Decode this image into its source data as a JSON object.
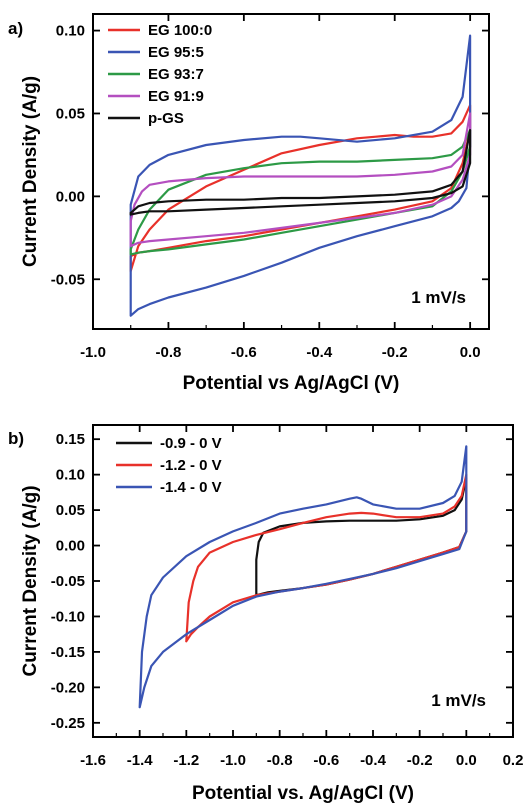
{
  "chart_data": [
    {
      "type": "line",
      "panel_label": "a)",
      "xlabel": "Potential vs Ag/AgCl (V)",
      "ylabel": "Current Density (A/g)",
      "xlim": [
        -1.0,
        0.05
      ],
      "ylim": [
        -0.08,
        0.11
      ],
      "xticks": [
        -1.0,
        -0.8,
        -0.6,
        -0.4,
        -0.2,
        0.0
      ],
      "xtick_labels": [
        "-1.0",
        "-0.8",
        "-0.6",
        "-0.4",
        "-0.2",
        "0.0"
      ],
      "yticks": [
        -0.05,
        0.0,
        0.05,
        0.1
      ],
      "ytick_labels": [
        "-0.05",
        "0.00",
        "0.05",
        "0.10"
      ],
      "annotation": "1 mV/s",
      "legend_position": "top-left",
      "series": [
        {
          "name": "EG 100:0",
          "color": "#e8312a",
          "x": [
            -0.9,
            -0.88,
            -0.85,
            -0.8,
            -0.7,
            -0.6,
            -0.5,
            -0.4,
            -0.3,
            -0.25,
            -0.2,
            -0.15,
            -0.1,
            -0.05,
            -0.02,
            0.0,
            0.0,
            -0.02,
            -0.05,
            -0.1,
            -0.2,
            -0.3,
            -0.4,
            -0.5,
            -0.6,
            -0.7,
            -0.8,
            -0.85,
            -0.88,
            -0.9,
            -0.9
          ],
          "y": [
            -0.045,
            -0.03,
            -0.02,
            -0.008,
            0.006,
            0.016,
            0.026,
            0.031,
            0.035,
            0.036,
            0.037,
            0.036,
            0.036,
            0.038,
            0.045,
            0.055,
            0.04,
            0.02,
            0.005,
            -0.003,
            -0.008,
            -0.012,
            -0.016,
            -0.02,
            -0.024,
            -0.027,
            -0.031,
            -0.033,
            -0.034,
            -0.036,
            -0.045
          ]
        },
        {
          "name": "EG 95:5",
          "color": "#3a55b4",
          "x": [
            -0.9,
            -0.88,
            -0.85,
            -0.8,
            -0.7,
            -0.6,
            -0.5,
            -0.45,
            -0.4,
            -0.3,
            -0.2,
            -0.1,
            -0.05,
            -0.02,
            0.0,
            0.0,
            -0.01,
            -0.03,
            -0.05,
            -0.1,
            -0.2,
            -0.3,
            -0.4,
            -0.5,
            -0.6,
            -0.7,
            -0.8,
            -0.85,
            -0.88,
            -0.9,
            -0.9
          ],
          "y": [
            -0.005,
            0.012,
            0.019,
            0.025,
            0.031,
            0.034,
            0.036,
            0.036,
            0.035,
            0.033,
            0.035,
            0.039,
            0.046,
            0.06,
            0.097,
            0.03,
            0.005,
            -0.003,
            -0.007,
            -0.012,
            -0.018,
            -0.024,
            -0.031,
            -0.04,
            -0.048,
            -0.055,
            -0.061,
            -0.065,
            -0.068,
            -0.072,
            -0.005
          ]
        },
        {
          "name": "EG 93:7",
          "color": "#2d9a46",
          "x": [
            -0.9,
            -0.88,
            -0.85,
            -0.8,
            -0.7,
            -0.6,
            -0.5,
            -0.4,
            -0.3,
            -0.2,
            -0.1,
            -0.05,
            -0.02,
            0.0,
            0.0,
            -0.02,
            -0.05,
            -0.1,
            -0.2,
            -0.3,
            -0.4,
            -0.5,
            -0.6,
            -0.7,
            -0.8,
            -0.85,
            -0.88,
            -0.9,
            -0.9
          ],
          "y": [
            -0.032,
            -0.02,
            -0.008,
            0.004,
            0.013,
            0.017,
            0.02,
            0.021,
            0.021,
            0.022,
            0.023,
            0.025,
            0.03,
            0.04,
            0.03,
            0.015,
            0.003,
            -0.006,
            -0.01,
            -0.014,
            -0.018,
            -0.022,
            -0.026,
            -0.029,
            -0.032,
            -0.033,
            -0.034,
            -0.035,
            -0.032
          ]
        },
        {
          "name": "EG 91:9",
          "color": "#b44fc0",
          "x": [
            -0.9,
            -0.89,
            -0.87,
            -0.85,
            -0.8,
            -0.7,
            -0.6,
            -0.5,
            -0.4,
            -0.3,
            -0.2,
            -0.1,
            -0.05,
            -0.02,
            0.0,
            0.0,
            -0.02,
            -0.05,
            -0.1,
            -0.2,
            -0.3,
            -0.4,
            -0.5,
            -0.6,
            -0.7,
            -0.8,
            -0.85,
            -0.88,
            -0.9,
            -0.9
          ],
          "y": [
            -0.015,
            -0.005,
            0.003,
            0.007,
            0.009,
            0.011,
            0.012,
            0.012,
            0.012,
            0.012,
            0.013,
            0.015,
            0.018,
            0.025,
            0.05,
            0.025,
            0.01,
            0.0,
            -0.005,
            -0.01,
            -0.013,
            -0.016,
            -0.019,
            -0.022,
            -0.024,
            -0.026,
            -0.027,
            -0.028,
            -0.03,
            -0.015
          ]
        },
        {
          "name": "p-GS",
          "color": "#111111",
          "x": [
            -0.9,
            -0.88,
            -0.85,
            -0.8,
            -0.7,
            -0.6,
            -0.5,
            -0.4,
            -0.3,
            -0.2,
            -0.1,
            -0.05,
            -0.02,
            0.0,
            0.0,
            -0.02,
            -0.05,
            -0.1,
            -0.2,
            -0.3,
            -0.4,
            -0.5,
            -0.6,
            -0.7,
            -0.8,
            -0.85,
            -0.88,
            -0.9,
            -0.9
          ],
          "y": [
            -0.01,
            -0.006,
            -0.004,
            -0.003,
            -0.002,
            -0.002,
            -0.001,
            -0.001,
            0.0,
            0.001,
            0.003,
            0.007,
            0.015,
            0.04,
            0.02,
            0.006,
            0.002,
            -0.001,
            -0.003,
            -0.004,
            -0.005,
            -0.006,
            -0.007,
            -0.008,
            -0.009,
            -0.009,
            -0.01,
            -0.011,
            -0.01
          ]
        }
      ]
    },
    {
      "type": "line",
      "panel_label": "b)",
      "xlabel": "Potential vs. Ag/AgCl (V)",
      "ylabel": "Current Density (A/g)",
      "xlim": [
        -1.6,
        0.2
      ],
      "ylim": [
        -0.27,
        0.17
      ],
      "xticks": [
        -1.6,
        -1.4,
        -1.2,
        -1.0,
        -0.8,
        -0.6,
        -0.4,
        -0.2,
        0.0,
        0.2
      ],
      "xtick_labels": [
        "-1.6",
        "-1.4",
        "-1.2",
        "-1.0",
        "-0.8",
        "-0.6",
        "-0.4",
        "-0.2",
        "0.0",
        "0.2"
      ],
      "yticks": [
        -0.25,
        -0.2,
        -0.15,
        -0.1,
        -0.05,
        0.0,
        0.05,
        0.1,
        0.15
      ],
      "ytick_labels": [
        "-0.25",
        "-0.20",
        "-0.15",
        "-0.10",
        "-0.05",
        "0.00",
        "0.05",
        "0.10",
        "0.15"
      ],
      "annotation": "1 mV/s",
      "legend_position": "top-left",
      "series": [
        {
          "name": "-0.9 - 0 V",
          "color": "#111111",
          "x": [
            -0.9,
            -0.9,
            -0.89,
            -0.87,
            -0.8,
            -0.7,
            -0.6,
            -0.5,
            -0.4,
            -0.3,
            -0.2,
            -0.1,
            -0.05,
            -0.02,
            0.0,
            0.0,
            -0.03,
            -0.1,
            -0.2,
            -0.3,
            -0.4,
            -0.5,
            -0.6,
            -0.7,
            -0.8,
            -0.85,
            -0.9
          ],
          "y": [
            -0.07,
            -0.02,
            0.005,
            0.018,
            0.027,
            0.032,
            0.034,
            0.035,
            0.035,
            0.035,
            0.037,
            0.042,
            0.05,
            0.065,
            0.095,
            0.02,
            -0.002,
            -0.01,
            -0.02,
            -0.03,
            -0.04,
            -0.048,
            -0.055,
            -0.06,
            -0.064,
            -0.066,
            -0.07
          ]
        },
        {
          "name": "-1.2 - 0 V",
          "color": "#e8312a",
          "x": [
            -1.2,
            -1.19,
            -1.17,
            -1.15,
            -1.1,
            -1.0,
            -0.9,
            -0.8,
            -0.7,
            -0.6,
            -0.5,
            -0.45,
            -0.4,
            -0.3,
            -0.2,
            -0.1,
            -0.05,
            -0.02,
            0.0,
            0.0,
            -0.03,
            -0.1,
            -0.2,
            -0.3,
            -0.4,
            -0.5,
            -0.6,
            -0.7,
            -0.8,
            -0.9,
            -1.0,
            -1.05,
            -1.1,
            -1.15,
            -1.18,
            -1.2
          ],
          "y": [
            -0.135,
            -0.08,
            -0.05,
            -0.03,
            -0.01,
            0.005,
            0.015,
            0.023,
            0.032,
            0.04,
            0.045,
            0.046,
            0.045,
            0.04,
            0.04,
            0.045,
            0.055,
            0.07,
            0.1,
            0.02,
            -0.002,
            -0.01,
            -0.02,
            -0.03,
            -0.04,
            -0.048,
            -0.055,
            -0.06,
            -0.065,
            -0.07,
            -0.08,
            -0.09,
            -0.1,
            -0.115,
            -0.125,
            -0.135
          ]
        },
        {
          "name": "-1.4 - 0 V",
          "color": "#3a55b4",
          "x": [
            -1.4,
            -1.39,
            -1.37,
            -1.35,
            -1.3,
            -1.2,
            -1.1,
            -1.0,
            -0.9,
            -0.8,
            -0.7,
            -0.6,
            -0.5,
            -0.47,
            -0.45,
            -0.4,
            -0.3,
            -0.2,
            -0.1,
            -0.05,
            -0.02,
            0.0,
            0.0,
            -0.03,
            -0.1,
            -0.2,
            -0.3,
            -0.4,
            -0.5,
            -0.6,
            -0.7,
            -0.8,
            -0.9,
            -1.0,
            -1.1,
            -1.2,
            -1.3,
            -1.35,
            -1.38,
            -1.4
          ],
          "y": [
            -0.228,
            -0.15,
            -0.1,
            -0.07,
            -0.045,
            -0.015,
            0.005,
            0.02,
            0.032,
            0.045,
            0.052,
            0.058,
            0.066,
            0.068,
            0.066,
            0.058,
            0.052,
            0.052,
            0.06,
            0.07,
            0.09,
            0.14,
            0.02,
            -0.005,
            -0.012,
            -0.022,
            -0.032,
            -0.04,
            -0.047,
            -0.054,
            -0.06,
            -0.065,
            -0.072,
            -0.085,
            -0.105,
            -0.125,
            -0.15,
            -0.17,
            -0.2,
            -0.228
          ]
        }
      ]
    }
  ]
}
